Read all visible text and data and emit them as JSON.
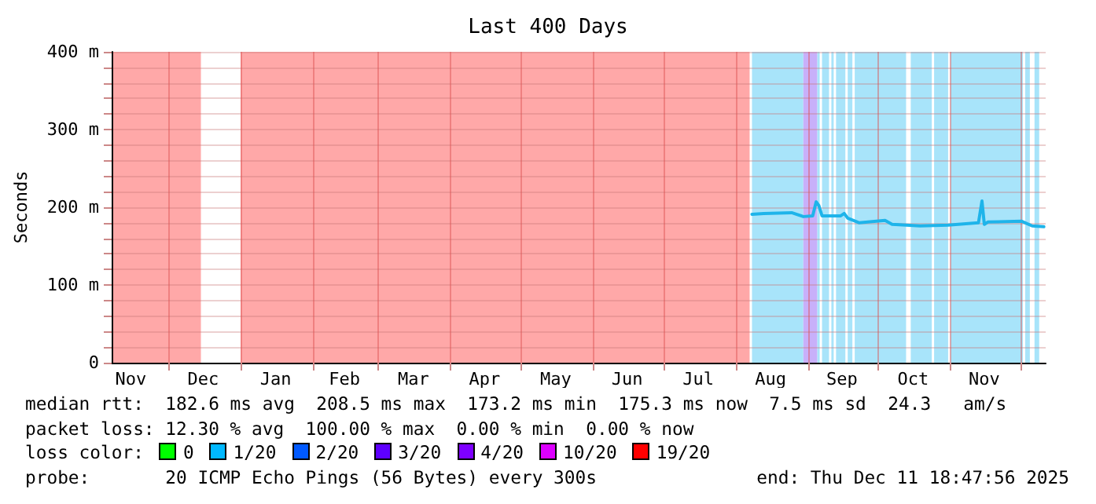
{
  "chart_data": {
    "type": "line",
    "title": "Last 400 Days",
    "ylabel": "Seconds",
    "series": [
      {
        "color": "#1eb4ea",
        "x": [
          "2025-08-08",
          "2025-08-13",
          "2025-08-25",
          "2025-08-30",
          "2025-09-03",
          "2025-09-04T12:00",
          "2025-09-05T16:00",
          "2025-09-07",
          "2025-09-15",
          "2025-09-16T12:00",
          "2025-09-18",
          "2025-09-23",
          "2025-10-04",
          "2025-10-07",
          "2025-10-19",
          "2025-10-31",
          "2025-11-13",
          "2025-11-14T12:00",
          "2025-11-15T12:00",
          "2025-11-17",
          "2025-12-01T12:00",
          "2025-12-06",
          "2025-12-11T00:00"
        ],
        "values": [
          191,
          192,
          193,
          188,
          189,
          207,
          202,
          189,
          189,
          192,
          186,
          180,
          183,
          178,
          176,
          177,
          180,
          208,
          178,
          181,
          182,
          176,
          175
        ]
      }
    ],
    "xlim": [
      "2024-11-06T18:47",
      "2025-12-11T18:47"
    ],
    "xticks": [
      {
        "value": "2024-11-15",
        "label": "Nov"
      },
      {
        "value": "2024-12-01",
        "label": null
      },
      {
        "value": "2024-12-16",
        "label": "Dec"
      },
      {
        "value": "2025-01-01",
        "label": null
      },
      {
        "value": "2025-01-16",
        "label": "Jan"
      },
      {
        "value": "2025-02-01",
        "label": null
      },
      {
        "value": "2025-02-14T12:00",
        "label": "Feb"
      },
      {
        "value": "2025-03-01",
        "label": null
      },
      {
        "value": "2025-03-16",
        "label": "Mar"
      },
      {
        "value": "2025-04-01",
        "label": null
      },
      {
        "value": "2025-04-15T12:00",
        "label": "Apr"
      },
      {
        "value": "2025-05-01",
        "label": null
      },
      {
        "value": "2025-05-16",
        "label": "May"
      },
      {
        "value": "2025-06-01",
        "label": null
      },
      {
        "value": "2025-06-15T12:00",
        "label": "Jun"
      },
      {
        "value": "2025-07-01",
        "label": null
      },
      {
        "value": "2025-07-16",
        "label": "Jul"
      },
      {
        "value": "2025-08-01",
        "label": null
      },
      {
        "value": "2025-08-16",
        "label": "Aug"
      },
      {
        "value": "2025-09-01",
        "label": null
      },
      {
        "value": "2025-09-15T12:00",
        "label": "Sep"
      },
      {
        "value": "2025-10-01",
        "label": null
      },
      {
        "value": "2025-10-16",
        "label": "Oct"
      },
      {
        "value": "2025-11-01",
        "label": null
      },
      {
        "value": "2025-11-15T12:00",
        "label": "Nov"
      },
      {
        "value": "2025-12-01",
        "label": null
      }
    ],
    "ylim": [
      0,
      400
    ],
    "yticks": [
      {
        "value": 0,
        "label": "0"
      },
      {
        "value": 20,
        "label": null
      },
      {
        "value": 40,
        "label": null
      },
      {
        "value": 60,
        "label": null
      },
      {
        "value": 80,
        "label": null
      },
      {
        "value": 100,
        "label": "100 m"
      },
      {
        "value": 120,
        "label": null
      },
      {
        "value": 140,
        "label": null
      },
      {
        "value": 160,
        "label": null
      },
      {
        "value": 180,
        "label": null
      },
      {
        "value": 200,
        "label": "200 m"
      },
      {
        "value": 220,
        "label": null
      },
      {
        "value": 240,
        "label": null
      },
      {
        "value": 260,
        "label": null
      },
      {
        "value": 280,
        "label": null
      },
      {
        "value": 300,
        "label": "300 m"
      },
      {
        "value": 320,
        "label": null
      },
      {
        "value": 340,
        "label": null
      },
      {
        "value": 360,
        "label": null
      },
      {
        "value": 380,
        "label": null
      },
      {
        "value": 400,
        "label": "400 m"
      }
    ],
    "bands": [
      {
        "axis": "x",
        "from": "2024-11-06T18:47",
        "to": "2024-12-15",
        "color": "#ffa8a8"
      },
      {
        "axis": "x",
        "from": "2025-01-01",
        "to": "2025-08-07",
        "color": "#ffa8a8"
      },
      {
        "axis": "x",
        "from": "2025-08-08",
        "to": "2025-08-30",
        "color": "#a8e4fa"
      },
      {
        "axis": "x",
        "from": "2025-08-30",
        "to": "2025-09-05",
        "color": "#c8b0fa"
      },
      {
        "axis": "x",
        "from": "2025-09-05",
        "to": "2025-09-06",
        "color": "#a8e4fa"
      },
      {
        "axis": "x",
        "from": "2025-09-07",
        "to": "2025-09-10",
        "color": "#a8e4fa"
      },
      {
        "axis": "x",
        "from": "2025-09-11",
        "to": "2025-09-12",
        "color": "#a8e4fa"
      },
      {
        "axis": "x",
        "from": "2025-09-13",
        "to": "2025-09-17",
        "color": "#a8e4fa"
      },
      {
        "axis": "x",
        "from": "2025-09-18",
        "to": "2025-09-20",
        "color": "#a8e4fa"
      },
      {
        "axis": "x",
        "from": "2025-09-21",
        "to": "2025-10-13",
        "color": "#a8e4fa"
      },
      {
        "axis": "x",
        "from": "2025-10-15",
        "to": "2025-10-24",
        "color": "#a8e4fa"
      },
      {
        "axis": "x",
        "from": "2025-10-25",
        "to": "2025-10-31",
        "color": "#a8e4fa"
      },
      {
        "axis": "x",
        "from": "2025-11-01",
        "to": "2025-12-02",
        "color": "#a8e4fa"
      },
      {
        "axis": "x",
        "from": "2025-12-03",
        "to": "2025-12-05",
        "color": "#a8e4fa"
      },
      {
        "axis": "x",
        "from": "2025-12-07",
        "to": "2025-12-09",
        "color": "#a8e4fa"
      }
    ],
    "grid": true,
    "marker": "none",
    "line_style": "solid",
    "annotations": [
      "median rtt:  182.6 ms avg  208.5 ms max  173.2 ms min  175.3 ms now  7.5 ms sd  24.3   am/s",
      "packet loss: 12.30 % avg  100.00 % max  0.00 % min  0.00 % now",
      "loss color:",
      "0",
      "1/20",
      "2/20",
      "3/20",
      "4/20",
      "10/20",
      "19/20",
      "probe:       20 ICMP Echo Pings (56 Bytes) every 300s",
      "end: Thu Dec 11 18:47:56 2025"
    ]
  }
}
